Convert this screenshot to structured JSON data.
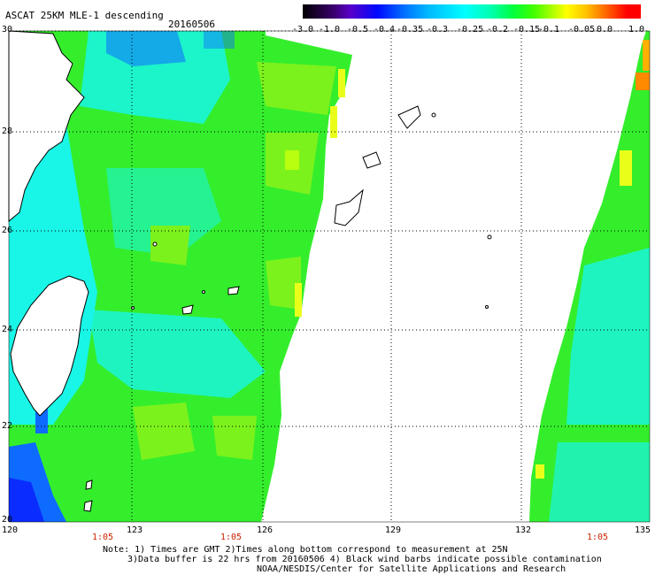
{
  "header": {
    "title": "ASCAT 25KM MLE-1 descending",
    "date": "20160506"
  },
  "colorbar": {
    "labels": [
      "-3.0",
      "-1.0",
      "-0.5",
      "-0.4",
      "-0.35",
      "-0.3",
      "-0.25",
      "-0.2",
      "-0.15",
      "-0.1",
      "-0.05",
      "0.0",
      "1.0"
    ],
    "colors": [
      "#000000",
      "#5a00c8",
      "#0008ff",
      "#00b8ff",
      "#00ffff",
      "#00ff40",
      "#b0ff00",
      "#ffff00",
      "#ff6000",
      "#ff0000"
    ]
  },
  "axes": {
    "lat_labels": [
      "30",
      "28",
      "26",
      "24",
      "22",
      "20"
    ],
    "lon_labels": [
      "120",
      "123",
      "126",
      "129",
      "132",
      "135"
    ],
    "time_labels": [
      "1:05",
      "1:05",
      "1:05"
    ]
  },
  "notes": {
    "line1": "Note: 1) Times are GMT 2)Times along bottom correspond to measurement at 25N",
    "line2": "3)Data buffer is 22 hrs from 20160506 4) Black wind barbs indicate possible contamination",
    "line3": "NOAA/NESDIS/Center for Satellite Applications and Research"
  },
  "map": {
    "swath_colors": {
      "green": "#34ee2c",
      "cyan": "#19f5e6",
      "light_green": "#7cf21c",
      "yellow": "#e9ff1a",
      "blue": "#0e6bff",
      "deep_blue": "#0a2cff",
      "orange": "#ff8a00"
    }
  }
}
